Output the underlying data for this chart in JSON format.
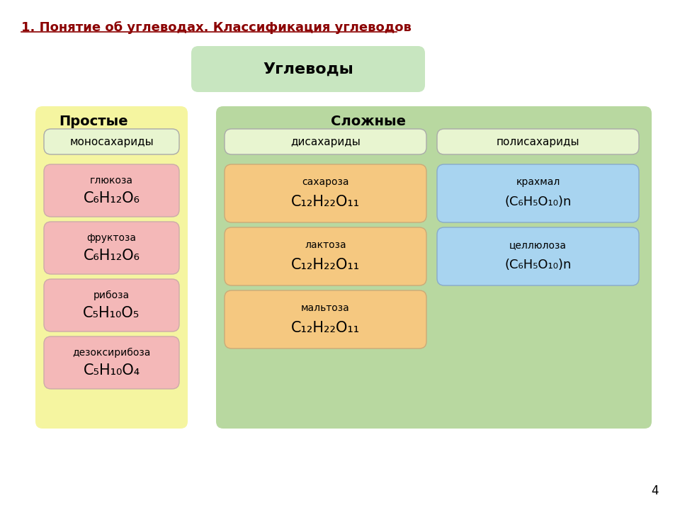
{
  "title": "1. Понятие об углеводах. Классификация углеводов",
  "title_color": "#8B0000",
  "bg_color": "#ffffff",
  "uglevody_label": "Углеводы",
  "uglevody_bg": "#c8e6c0",
  "prostye_label": "Простые",
  "slozhnye_label": "Сложные",
  "prostye_bg": "#f5f5a0",
  "slozhnye_bg": "#b8d8a0",
  "mono_bg": "#e8f5d0",
  "mono_label": "моносахариды",
  "di_bg": "#e8f5d0",
  "di_label": "дисахариды",
  "poli_bg": "#e8f5d0",
  "poli_label": "полисахариды",
  "pink_box": "#f4b8b8",
  "orange_box": "#f5c880",
  "blue_box": "#a8d4f0",
  "prostye_items": [
    {
      "name": "глюкоза",
      "formula": "C₆H₁₂O₆"
    },
    {
      "name": "фруктоза",
      "formula": "C₆H₁₂O₆"
    },
    {
      "name": "рибоза",
      "formula": "C₅H₁₀O₅"
    },
    {
      "name": "дезоксирибоза",
      "formula": "C₅H₁₀O₄"
    }
  ],
  "di_items": [
    {
      "name": "сахароза",
      "formula": "C₁₂H₂₂O₁₁"
    },
    {
      "name": "лактоза",
      "formula": "C₁₂H₂₂O₁₁"
    },
    {
      "name": "мальтоза",
      "formula": "C₁₂H₂₂O₁₁"
    }
  ],
  "poli_items": [
    {
      "name": "крахмал",
      "formula": "(C₆H₅O₁₀)n"
    },
    {
      "name": "целлюлоза",
      "formula": "(C₆H₅O₁₀)n"
    }
  ],
  "page_num": "4"
}
